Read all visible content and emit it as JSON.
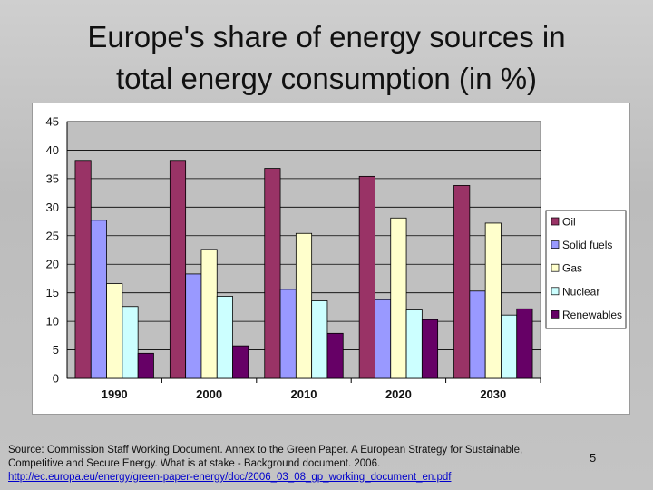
{
  "slide": {
    "title_line1": "Europe's share of energy sources in",
    "title_line2": "total energy consumption (in %)",
    "source_text": "Source: Commission Staff Working Document. Annex to the Green Paper. A European Strategy for Sustainable, Competitive and Secure Energy. What is at stake - Background document. 2006.",
    "source_url": "http://ec.europa.eu/energy/green-paper-energy/doc/2006_03_08_gp_working_document_en.pdf",
    "page_number": "5"
  },
  "chart_data": {
    "type": "bar",
    "title": "",
    "xlabel": "",
    "ylabel": "",
    "categories": [
      "1990",
      "2000",
      "2010",
      "2020",
      "2030"
    ],
    "ylim": [
      0,
      45
    ],
    "yticks": [
      0,
      5,
      10,
      15,
      20,
      25,
      30,
      35,
      40,
      45
    ],
    "grid": true,
    "legend_position": "right",
    "series": [
      {
        "name": "Oil",
        "color": "#993366",
        "values": [
          38.2,
          38.2,
          36.8,
          35.4,
          33.8
        ]
      },
      {
        "name": "Solid fuels",
        "color": "#9999ff",
        "values": [
          27.7,
          18.3,
          15.6,
          13.8,
          15.3
        ]
      },
      {
        "name": "Gas",
        "color": "#ffffcc",
        "values": [
          16.6,
          22.6,
          25.4,
          28.1,
          27.2
        ]
      },
      {
        "name": "Nuclear",
        "color": "#ccffff",
        "values": [
          12.6,
          14.4,
          13.6,
          12.0,
          11.1
        ]
      },
      {
        "name": "Renewables",
        "color": "#660066",
        "values": [
          4.4,
          5.7,
          7.9,
          10.3,
          12.2
        ]
      }
    ],
    "plot_background": "#c0c0c0"
  }
}
